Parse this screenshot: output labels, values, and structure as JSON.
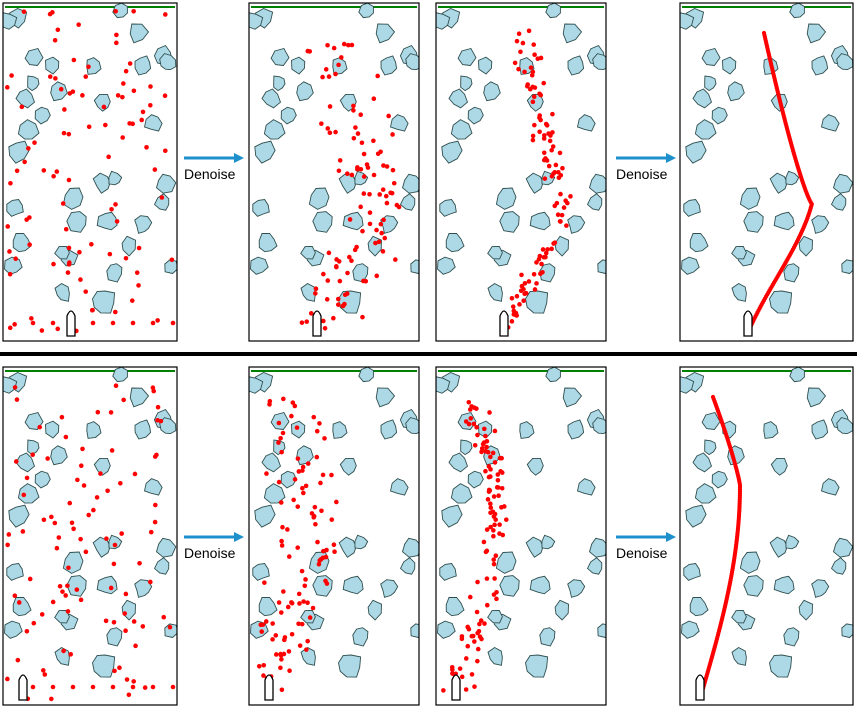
{
  "arrow_label": "Denoise",
  "colors": {
    "obstacle_fill": "#add8e6",
    "obstacle_stroke": "#2f4f4f",
    "point": "#ff0000",
    "goal_line": "#008000",
    "arrow": "#1e90cc",
    "divider": "#000000",
    "frame": "#000000"
  },
  "rows": [
    {
      "stages": [
        "noise",
        "partial",
        "nearly-clean",
        "clean-path"
      ],
      "path_shape": "right-bulge"
    },
    {
      "stages": [
        "noise",
        "partial",
        "nearly-clean",
        "clean-path"
      ],
      "path_shape": "left-hug"
    }
  ],
  "icons": {
    "agent": "rocket-marker-icon",
    "arrow": "right-arrow-icon"
  }
}
